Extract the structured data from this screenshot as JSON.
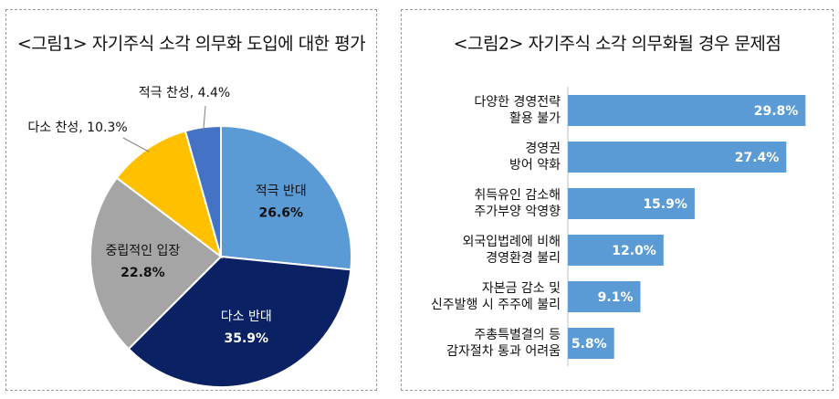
{
  "chart_data": [
    {
      "type": "pie",
      "title": "<그림1> 자기주식 소각 의무화 도입에 대한 평가",
      "slices": [
        {
          "label": "적극 반대",
          "value": 26.6,
          "display": "26.6%",
          "color": "#5B9BD5",
          "label_color": "#111111"
        },
        {
          "label": "다소 반대",
          "value": 35.9,
          "display": "35.9%",
          "color": "#0A2263",
          "label_color": "#ffffff"
        },
        {
          "label": "중립적인 입장",
          "value": 22.8,
          "display": "22.8%",
          "color": "#A5A5A5",
          "label_color": "#111111"
        },
        {
          "label": "다소 찬성",
          "value": 10.3,
          "display": "10.3%",
          "color": "#FFC000",
          "label_color": "#111111"
        },
        {
          "label": "적극 찬성",
          "value": 4.4,
          "display": "4.4%",
          "color": "#4472C4",
          "label_color": "#111111"
        }
      ],
      "outside_labels": [
        "다소 찬성, 10.3%",
        "적극 찬성, 4.4%"
      ]
    },
    {
      "type": "bar",
      "orientation": "horizontal",
      "title": "<그림2> 자기주식 소각 의무화될 경우 문제점",
      "bar_color": "#5B9BD5",
      "categories": [
        [
          "다양한 경영전략",
          "활용 불가"
        ],
        [
          "경영권",
          "방어 약화"
        ],
        [
          "취득유인 감소해",
          "주가부양 악영향"
        ],
        [
          "외국입법례에 비해",
          "경영환경 불리"
        ],
        [
          "자본금 감소 및",
          "신주발행 시 주주에 불리"
        ],
        [
          "주총특별결의 등",
          "감자절차 통과 어려움"
        ]
      ],
      "values": [
        29.8,
        27.4,
        15.9,
        12.0,
        9.1,
        5.8
      ],
      "value_labels": [
        "29.8%",
        "27.4%",
        "15.9%",
        "12.0%",
        "9.1%",
        "5.8%"
      ],
      "xlim": [
        0,
        30
      ]
    }
  ]
}
